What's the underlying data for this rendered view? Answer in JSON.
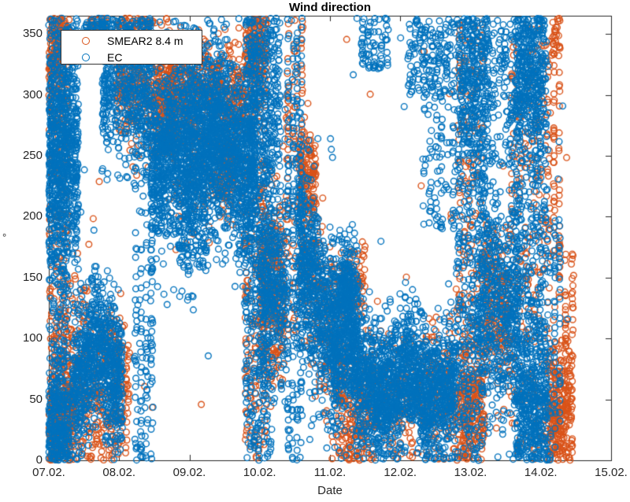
{
  "chart_data": {
    "type": "scatter",
    "title": "Wind direction",
    "xlabel": "Date",
    "ylabel": "°",
    "x_tick_labels": [
      "07.02.",
      "08.02.",
      "09.02.",
      "10.02.",
      "11.02.",
      "12.02.",
      "13.02.",
      "14.02.",
      "15.02."
    ],
    "x_tick_days": [
      0,
      1,
      2,
      3,
      4,
      5,
      6,
      7,
      8
    ],
    "y_tick_values": [
      0,
      50,
      100,
      150,
      200,
      250,
      300,
      350
    ],
    "xlim_days": [
      0,
      8
    ],
    "ylim": [
      0,
      365
    ],
    "grid": false,
    "legend": {
      "position": "top-left",
      "entries": [
        {
          "label": "SMEAR2 8.4 m",
          "color": "#D95319"
        },
        {
          "label": "EC",
          "color": "#0072BD"
        }
      ]
    },
    "marker": {
      "shape": "open-circle",
      "radius_px": 3.8,
      "stroke_px": 1.4
    },
    "series": [
      {
        "name": "SMEAR2 8.4 m",
        "color": "#D95319",
        "clusters": [
          {
            "t": [
              0.0,
              0.28
            ],
            "v": [
              0,
              363
            ],
            "dist": "uniform",
            "n": 250,
            "cols": 6
          },
          {
            "t": [
              0.0,
              0.3
            ],
            "v": [
              322,
              330
            ],
            "dist": "normal",
            "spread": 28,
            "n": 200
          },
          {
            "t": [
              0.0,
              0.35
            ],
            "v": [
              30,
              40
            ],
            "dist": "normal",
            "spread": 26,
            "n": 250
          },
          {
            "t": [
              0.3,
              0.6
            ],
            "v": [
              80,
              70
            ],
            "dist": "normal",
            "spread": 38,
            "n": 150
          },
          {
            "t": [
              0.55,
              1.15
            ],
            "v": [
              55,
              60
            ],
            "dist": "normal",
            "spread": 34,
            "n": 250
          },
          {
            "t": [
              0.55,
              0.85
            ],
            "v": [
              330,
              363
            ],
            "dist": "uniform",
            "n": 80,
            "cols": 3
          },
          {
            "t": [
              0.95,
              1.5
            ],
            "v": [
              320,
              315
            ],
            "dist": "normal",
            "spread": 28,
            "n": 300
          },
          {
            "t": [
              1.5,
              1.8
            ],
            "v": [
              300,
              295
            ],
            "dist": "normal",
            "spread": 26,
            "n": 280
          },
          {
            "t": [
              1.7,
              2.8
            ],
            "v": [
              305,
              300
            ],
            "dist": "normal",
            "spread": 20,
            "n": 450
          },
          {
            "t": [
              1.8,
              2.8
            ],
            "v": [
              255,
              250
            ],
            "dist": "normal",
            "spread": 30,
            "n": 200
          },
          {
            "t": [
              2.4,
              2.65
            ],
            "v": [
              240,
              240
            ],
            "dist": "normal",
            "spread": 16,
            "n": 90
          },
          {
            "t": [
              2.78,
              3.1
            ],
            "v": [
              0,
              363
            ],
            "dist": "uniform",
            "n": 220,
            "cols": 5
          },
          {
            "t": [
              2.8,
              3.1
            ],
            "v": [
              332,
              340
            ],
            "dist": "normal",
            "spread": 18,
            "n": 150
          },
          {
            "t": [
              3.0,
              3.35
            ],
            "v": [
              150,
              140
            ],
            "dist": "normal",
            "spread": 38,
            "n": 300
          },
          {
            "t": [
              3.35,
              3.65
            ],
            "v": [
              100,
              363
            ],
            "dist": "uniform",
            "n": 100,
            "cols": 3
          },
          {
            "t": [
              3.55,
              3.8
            ],
            "v": [
              235,
              230
            ],
            "dist": "normal",
            "spread": 20,
            "n": 150
          },
          {
            "t": [
              3.6,
              4.15
            ],
            "v": [
              160,
              80
            ],
            "dist": "normal",
            "spread": 42,
            "n": 200
          },
          {
            "t": [
              4.1,
              4.5
            ],
            "v": [
              140,
              145
            ],
            "dist": "normal",
            "spread": 16,
            "n": 90
          },
          {
            "t": [
              4.1,
              4.6
            ],
            "v": [
              40,
              45
            ],
            "dist": "normal",
            "spread": 26,
            "n": 220
          },
          {
            "t": [
              4.6,
              5.85
            ],
            "v": [
              50,
              50
            ],
            "dist": "normal",
            "spread": 28,
            "n": 350
          },
          {
            "t": [
              5.8,
              6.2
            ],
            "v": [
              0,
              363
            ],
            "dist": "uniform",
            "n": 200,
            "cols": 5
          },
          {
            "t": [
              5.85,
              6.2
            ],
            "v": [
              40,
              50
            ],
            "dist": "normal",
            "spread": 28,
            "n": 200
          },
          {
            "t": [
              6.2,
              6.55
            ],
            "v": [
              130,
              120
            ],
            "dist": "normal",
            "spread": 32,
            "n": 220
          },
          {
            "t": [
              6.55,
              7.15
            ],
            "v": [
              0,
              363
            ],
            "dist": "uniform",
            "n": 280,
            "cols": 6
          },
          {
            "t": [
              7.15,
              7.3
            ],
            "v": [
              130,
              340
            ],
            "dist": "uniform",
            "n": 60,
            "cols": 2
          },
          {
            "t": [
              7.15,
              7.28
            ],
            "v": [
              345,
              358
            ],
            "dist": "normal",
            "spread": 7,
            "n": 22
          },
          {
            "t": [
              7.1,
              7.45
            ],
            "v": [
              40,
              50
            ],
            "dist": "normal",
            "spread": 28,
            "n": 280
          },
          {
            "t": [
              7.3,
              7.5
            ],
            "v": [
              80,
              170
            ],
            "dist": "uniform",
            "n": 35,
            "cols": 2
          },
          {
            "t": [
              0.0,
              7.5
            ],
            "v": [
              0,
              363
            ],
            "dist": "uniform",
            "n": 50
          }
        ]
      },
      {
        "name": "EC",
        "color": "#0072BD",
        "clusters": [
          {
            "t": [
              0.0,
              0.28
            ],
            "v": [
              0,
              363
            ],
            "dist": "uniform",
            "n": 300,
            "cols": 6
          },
          {
            "t": [
              0.0,
              0.42
            ],
            "v": [
              255,
              250
            ],
            "dist": "normal",
            "spread": 52,
            "n": 700
          },
          {
            "t": [
              0.0,
              0.3
            ],
            "v": [
              30,
              30
            ],
            "dist": "normal",
            "spread": 24,
            "n": 250
          },
          {
            "t": [
              0.33,
              0.7
            ],
            "v": [
              55,
              100
            ],
            "dist": "normal",
            "spread": 30,
            "n": 400
          },
          {
            "t": [
              0.7,
              1.05
            ],
            "v": [
              100,
              55
            ],
            "dist": "normal",
            "spread": 30,
            "n": 400
          },
          {
            "t": [
              0.5,
              0.8
            ],
            "v": [
              330,
              363
            ],
            "dist": "uniform",
            "n": 120,
            "cols": 4
          },
          {
            "t": [
              0.75,
              1.45
            ],
            "v": [
              310,
              310
            ],
            "dist": "normal",
            "spread": 36,
            "n": 500
          },
          {
            "t": [
              1.2,
              1.5
            ],
            "v": [
              0,
              363
            ],
            "dist": "uniform",
            "n": 200,
            "cols": 4
          },
          {
            "t": [
              1.45,
              1.9
            ],
            "v": [
              235,
              265
            ],
            "dist": "normal",
            "spread": 36,
            "n": 600
          },
          {
            "t": [
              1.9,
              2.45
            ],
            "v": [
              265,
              265
            ],
            "dist": "normal",
            "spread": 38,
            "n": 900
          },
          {
            "t": [
              2.45,
              2.95
            ],
            "v": [
              265,
              230
            ],
            "dist": "normal",
            "spread": 38,
            "n": 700
          },
          {
            "t": [
              1.85,
              2.25
            ],
            "v": [
              195,
              195
            ],
            "dist": "normal",
            "spread": 26,
            "n": 150
          },
          {
            "t": [
              2.78,
              3.2
            ],
            "v": [
              0,
              363
            ],
            "dist": "uniform",
            "n": 450,
            "cols": 7
          },
          {
            "t": [
              2.85,
              3.3
            ],
            "v": [
              300,
              300
            ],
            "dist": "normal",
            "spread": 38,
            "n": 250
          },
          {
            "t": [
              3.0,
              3.4
            ],
            "v": [
              150,
              140
            ],
            "dist": "normal",
            "spread": 42,
            "n": 350
          },
          {
            "t": [
              3.38,
              3.62
            ],
            "v": [
              0,
              363
            ],
            "dist": "uniform",
            "n": 220,
            "cols": 4
          },
          {
            "t": [
              3.55,
              4.1
            ],
            "v": [
              185,
              90
            ],
            "dist": "normal",
            "spread": 40,
            "n": 650
          },
          {
            "t": [
              4.05,
              4.4
            ],
            "v": [
              95,
              110
            ],
            "dist": "normal",
            "spread": 36,
            "n": 450
          },
          {
            "t": [
              4.15,
              4.3
            ],
            "v": [
              140,
              140
            ],
            "dist": "normal",
            "spread": 18,
            "n": 120
          },
          {
            "t": [
              4.35,
              4.75
            ],
            "v": [
              75,
              55
            ],
            "dist": "normal",
            "spread": 28,
            "n": 450
          },
          {
            "t": [
              4.75,
              5.15
            ],
            "v": [
              55,
              75
            ],
            "dist": "normal",
            "spread": 28,
            "n": 450
          },
          {
            "t": [
              5.15,
              5.5
            ],
            "v": [
              70,
              45
            ],
            "dist": "normal",
            "spread": 26,
            "n": 400
          },
          {
            "t": [
              5.5,
              5.8
            ],
            "v": [
              50,
              65
            ],
            "dist": "normal",
            "spread": 26,
            "n": 300
          },
          {
            "t": [
              4.42,
              4.85
            ],
            "v": [
              320,
              363
            ],
            "dist": "uniform",
            "n": 70,
            "cols": 5
          },
          {
            "t": [
              5.1,
              5.8
            ],
            "v": [
              300,
              363
            ],
            "dist": "uniform",
            "n": 170,
            "cols": 7
          },
          {
            "t": [
              5.3,
              5.8
            ],
            "v": [
              190,
              300
            ],
            "dist": "uniform",
            "n": 90,
            "cols": 6
          },
          {
            "t": [
              5.8,
              6.2
            ],
            "v": [
              0,
              363
            ],
            "dist": "uniform",
            "n": 420,
            "cols": 6
          },
          {
            "t": [
              5.85,
              6.25
            ],
            "v": [
              310,
              310
            ],
            "dist": "normal",
            "spread": 34,
            "n": 220
          },
          {
            "t": [
              6.1,
              6.7
            ],
            "v": [
              140,
              120
            ],
            "dist": "normal",
            "spread": 45,
            "n": 550
          },
          {
            "t": [
              6.2,
              6.7
            ],
            "v": [
              240,
              363
            ],
            "dist": "uniform",
            "n": 150,
            "cols": 6
          },
          {
            "t": [
              6.62,
              7.1
            ],
            "v": [
              0,
              363
            ],
            "dist": "uniform",
            "n": 550,
            "cols": 7
          },
          {
            "t": [
              6.65,
              7.05
            ],
            "v": [
              322,
              330
            ],
            "dist": "normal",
            "spread": 28,
            "n": 250
          },
          {
            "t": [
              6.65,
              7.1
            ],
            "v": [
              50,
              50
            ],
            "dist": "normal",
            "spread": 33,
            "n": 300
          },
          {
            "t": [
              7.1,
              7.3
            ],
            "v": [
              0,
              200
            ],
            "dist": "uniform",
            "n": 70,
            "cols": 3
          },
          {
            "t": [
              0.0,
              7.4
            ],
            "v": [
              0,
              363
            ],
            "dist": "uniform",
            "n": 60
          }
        ]
      }
    ]
  }
}
